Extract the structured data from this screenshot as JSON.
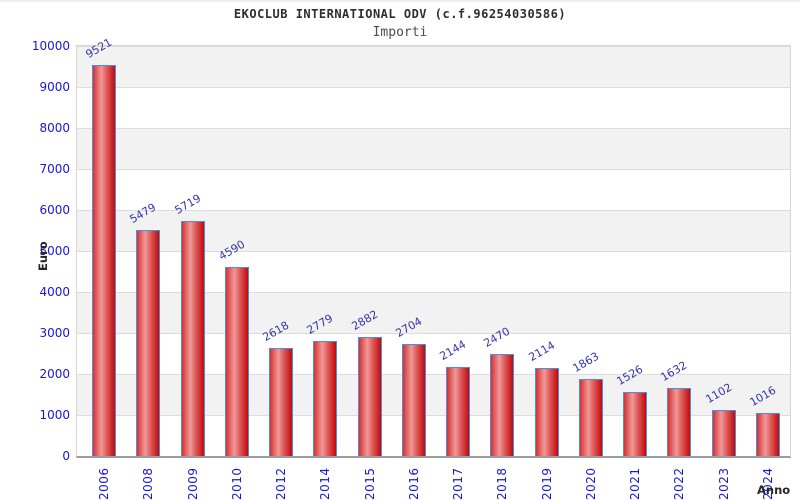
{
  "chart_data": {
    "type": "bar",
    "title": "EKOCLUB INTERNATIONAL ODV (c.f.96254030586)",
    "subtitle": "Importi",
    "xlabel": "Anno",
    "ylabel": "Euro",
    "categories": [
      "2006",
      "2008",
      "2009",
      "2010",
      "2012",
      "2014",
      "2015",
      "2016",
      "2017",
      "2018",
      "2019",
      "2020",
      "2021",
      "2022",
      "2023",
      "2024"
    ],
    "values": [
      9521,
      5479,
      5719,
      4590,
      2618,
      2779,
      2882,
      2704,
      2144,
      2470,
      2114,
      1863,
      1526,
      1632,
      1102,
      1016
    ],
    "ylim": [
      0,
      10000
    ],
    "ytick_step": 1000,
    "yticks": [
      0,
      1000,
      2000,
      3000,
      4000,
      5000,
      6000,
      7000,
      8000,
      9000,
      10000
    ],
    "grid": "horizontal alternating bands with gridlines every 1000",
    "legend": "none",
    "bar_value_labels_rotation_deg": -30,
    "colors": {
      "bar_left": "#d93030",
      "bar_highlight": "#ef9a9a",
      "bar_right": "#c00a0a",
      "bar_border": "#4a90e2",
      "tick_label": "#1717d6",
      "value_label": "#3434ab",
      "band_gray": "#f2f2f2",
      "band_white": "#ffffff",
      "gridline": "#dcdcdc",
      "axis_line": "#9c9c9c",
      "title_color": "#2e2e2e",
      "subtitle_color": "#4f4f4f",
      "axis_title_color": "#262626"
    }
  }
}
